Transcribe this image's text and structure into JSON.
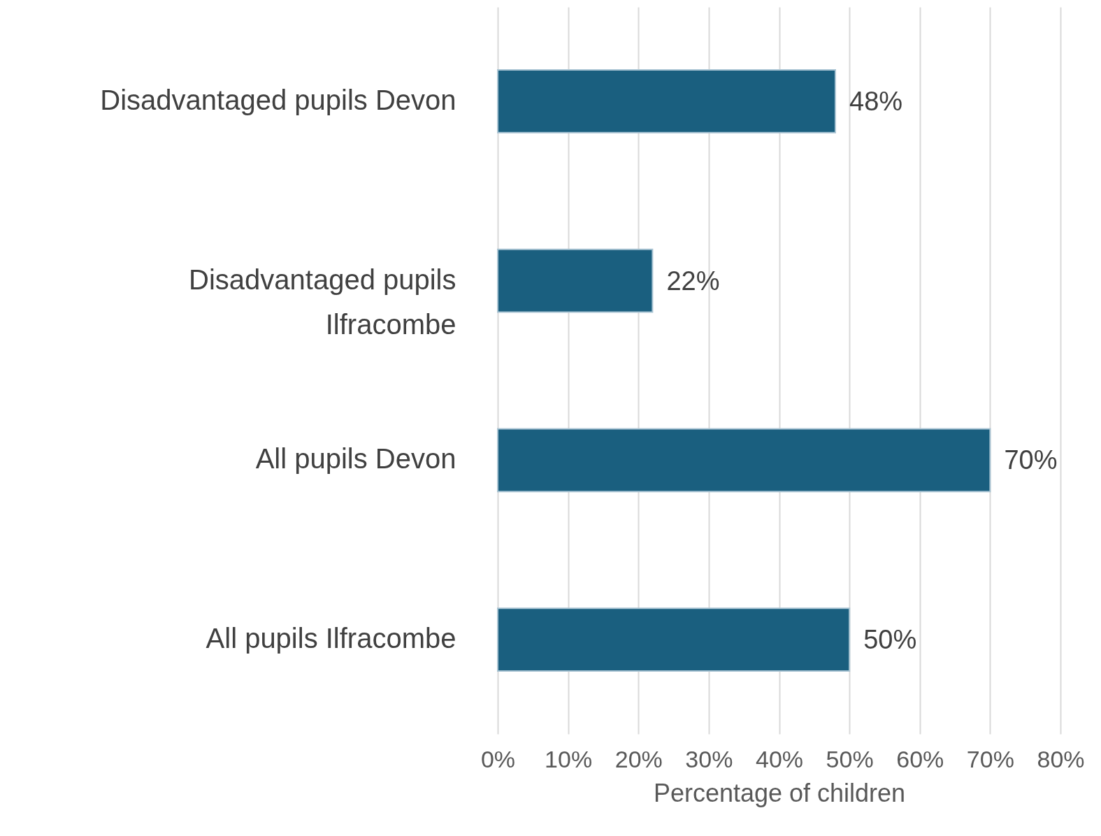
{
  "chart_data": {
    "type": "bar",
    "orientation": "horizontal",
    "xlabel": "Percentage of children",
    "categories": [
      "Disadvantaged pupils Devon",
      "Disadvantaged pupils Ilfracombe",
      "All pupils Devon",
      "All pupils Ilfracombe"
    ],
    "values": [
      48,
      22,
      70,
      50
    ],
    "value_labels": [
      "48%",
      "22%",
      "70%",
      "50%"
    ],
    "color": "#1a5f7f",
    "xlim": [
      0,
      80
    ],
    "xticks": [
      {
        "value": 0,
        "label": "0%"
      },
      {
        "value": 10,
        "label": "10%"
      },
      {
        "value": 20,
        "label": "20%"
      },
      {
        "value": 30,
        "label": "30%"
      },
      {
        "value": 40,
        "label": "40%"
      },
      {
        "value": 50,
        "label": "50%"
      },
      {
        "value": 60,
        "label": "60%"
      },
      {
        "value": 70,
        "label": "70%"
      },
      {
        "value": 80,
        "label": "80%"
      }
    ],
    "grid": "x"
  }
}
